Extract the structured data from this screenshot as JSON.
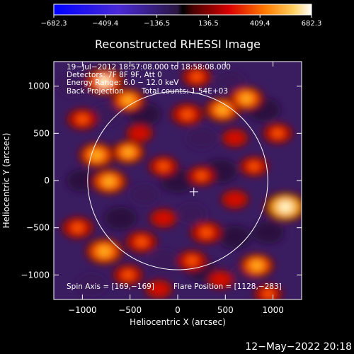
{
  "chart_data": {
    "type": "heatmap",
    "title": "Reconstructed RHESSI Image",
    "xlabel": "Heliocentric X (arcsec)",
    "ylabel": "Heliocentric Y (arcsec)",
    "xlim": [
      -1300,
      1300
    ],
    "ylim": [
      -1260,
      1260
    ],
    "x_ticks": [
      -1000,
      -500,
      0,
      500,
      1000
    ],
    "y_ticks": [
      -1000,
      -500,
      0,
      500,
      1000
    ],
    "x_tick_labels": [
      "−1000",
      "−500",
      "0",
      "500",
      "1000"
    ],
    "y_tick_labels": [
      "−1000",
      "−500",
      "0",
      "500",
      "1000"
    ],
    "colorbar": {
      "min": -682.3,
      "max": 682.3,
      "ticks": [
        -682.3,
        -409.4,
        -136.5,
        136.5,
        409.4,
        682.3
      ],
      "tick_labels": [
        "−682.3",
        "−409.4",
        "−136.5",
        "136.5",
        "409.4",
        "682.3"
      ]
    },
    "solar_limb_radius_arcsec": 945,
    "flare_marker": {
      "x": 169,
      "y": -119
    },
    "annotations": {
      "time_range": "19−Jul−2012 18:57:08.000 to 18:58:08.000",
      "detectors": "Detectors: 7F 8F 9F, Att 0",
      "energy": "Energy Range: 6.0 − 12.0 keV",
      "method": "Back Projection",
      "counts": "Total counts: 1.54E+03",
      "spin_axis": "Spin Axis = [169,−169]",
      "flare_position": "Flare Position = [1128,−283]"
    },
    "hotspots": [
      {
        "x": 1130,
        "y": -280,
        "value": 682
      },
      {
        "x": -770,
        "y": 1050,
        "value": 600
      },
      {
        "x": -770,
        "y": -750,
        "value": 560
      },
      {
        "x": -850,
        "y": 270,
        "value": 520
      },
      {
        "x": -720,
        "y": -10,
        "value": 520
      },
      {
        "x": 470,
        "y": 750,
        "value": 500
      },
      {
        "x": -520,
        "y": 300,
        "value": 450
      },
      {
        "x": 720,
        "y": 870,
        "value": 480
      },
      {
        "x": 830,
        "y": -900,
        "value": 480
      },
      {
        "x": -520,
        "y": 850,
        "value": 460
      },
      {
        "x": 100,
        "y": 700,
        "value": 420
      },
      {
        "x": 300,
        "y": -550,
        "value": 420
      },
      {
        "x": -380,
        "y": -650,
        "value": 400
      },
      {
        "x": -150,
        "y": 150,
        "value": 350
      },
      {
        "x": 250,
        "y": 50,
        "value": 320
      },
      {
        "x": 150,
        "y": -850,
        "value": 380
      },
      {
        "x": -520,
        "y": -1000,
        "value": 360
      },
      {
        "x": -1050,
        "y": -500,
        "value": 400
      },
      {
        "x": -1000,
        "y": 650,
        "value": 380
      },
      {
        "x": 800,
        "y": 150,
        "value": 330
      },
      {
        "x": -150,
        "y": -400,
        "value": 300
      },
      {
        "x": 600,
        "y": -200,
        "value": 300
      },
      {
        "x": 1050,
        "y": 500,
        "value": 350
      },
      {
        "x": 200,
        "y": 1100,
        "value": 350
      },
      {
        "x": -200,
        "y": -1150,
        "value": 300
      },
      {
        "x": 950,
        "y": -1200,
        "value": 320
      },
      {
        "x": -400,
        "y": 500,
        "value": 280
      },
      {
        "x": 600,
        "y": 450,
        "value": 270
      },
      {
        "x": 450,
        "y": -1050,
        "value": 280
      }
    ],
    "coldspots": [
      {
        "x": 0,
        "y": 0,
        "value": -500
      },
      {
        "x": 450,
        "y": 100,
        "value": -480
      },
      {
        "x": -350,
        "y": 700,
        "value": -460
      },
      {
        "x": 600,
        "y": -600,
        "value": -450
      },
      {
        "x": -600,
        "y": -400,
        "value": -450
      },
      {
        "x": 900,
        "y": 750,
        "value": -480
      },
      {
        "x": -1000,
        "y": 0,
        "value": -420
      },
      {
        "x": 250,
        "y": -950,
        "value": -420
      },
      {
        "x": -150,
        "y": -850,
        "value": -400
      },
      {
        "x": 250,
        "y": 450,
        "value": -400
      },
      {
        "x": 950,
        "y": -550,
        "value": -420
      },
      {
        "x": -750,
        "y": 700,
        "value": -380
      },
      {
        "x": 550,
        "y": 1050,
        "value": -380
      },
      {
        "x": -1100,
        "y": 1000,
        "value": -360
      },
      {
        "x": -350,
        "y": -150,
        "value": -360
      },
      {
        "x": 150,
        "y": -350,
        "value": -350
      },
      {
        "x": -900,
        "y": -1100,
        "value": -360
      },
      {
        "x": 700,
        "y": -1000,
        "value": -340
      }
    ]
  },
  "footer": {
    "timestamp": "12−May−2022 20:18"
  }
}
